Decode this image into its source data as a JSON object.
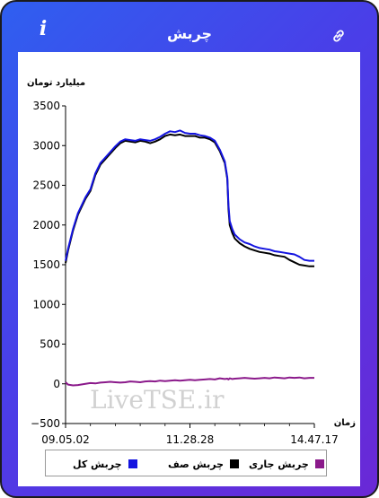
{
  "header": {
    "title": "چربش",
    "info_icon_char": "i",
    "link_icon": "link-icon"
  },
  "chart_data": {
    "type": "line",
    "ylabel": "میلیارد تومان",
    "xlabel": "زمان",
    "ylim": [
      -500,
      3500
    ],
    "yticks": [
      -500,
      0,
      500,
      1000,
      1500,
      2000,
      2500,
      3000,
      3500
    ],
    "x_tick_labels": [
      "09.05.02",
      "11.28.28",
      "14.47.17"
    ],
    "grid": false,
    "legend_position": "bottom",
    "watermark": "LiveTSE.ir",
    "x": [
      0,
      0.01,
      0.03,
      0.05,
      0.08,
      0.1,
      0.12,
      0.14,
      0.16,
      0.18,
      0.2,
      0.22,
      0.24,
      0.26,
      0.28,
      0.3,
      0.32,
      0.34,
      0.36,
      0.38,
      0.4,
      0.42,
      0.44,
      0.46,
      0.48,
      0.5,
      0.52,
      0.54,
      0.56,
      0.58,
      0.6,
      0.62,
      0.64,
      0.65,
      0.655,
      0.66,
      0.67,
      0.68,
      0.7,
      0.72,
      0.74,
      0.76,
      0.78,
      0.8,
      0.82,
      0.84,
      0.86,
      0.88,
      0.9,
      0.92,
      0.94,
      0.96,
      0.98,
      1.0
    ],
    "series": [
      {
        "name": "چربش کل",
        "color": "#1414e0",
        "values": [
          1550,
          1700,
          1950,
          2150,
          2350,
          2450,
          2650,
          2780,
          2850,
          2920,
          2990,
          3050,
          3080,
          3070,
          3060,
          3080,
          3070,
          3060,
          3080,
          3110,
          3150,
          3180,
          3170,
          3190,
          3160,
          3150,
          3150,
          3130,
          3120,
          3100,
          3060,
          2950,
          2800,
          2600,
          2250,
          2050,
          1950,
          1880,
          1820,
          1780,
          1760,
          1730,
          1710,
          1700,
          1690,
          1670,
          1660,
          1650,
          1640,
          1630,
          1600,
          1560,
          1550,
          1550
        ]
      },
      {
        "name": "چربش صف",
        "color": "#000000",
        "values": [
          1520,
          1680,
          1930,
          2130,
          2330,
          2430,
          2630,
          2760,
          2830,
          2900,
          2970,
          3030,
          3060,
          3050,
          3040,
          3060,
          3050,
          3030,
          3050,
          3080,
          3120,
          3140,
          3130,
          3140,
          3120,
          3120,
          3120,
          3100,
          3100,
          3080,
          3040,
          2930,
          2780,
          2580,
          2200,
          2000,
          1900,
          1830,
          1770,
          1730,
          1700,
          1680,
          1660,
          1650,
          1640,
          1620,
          1610,
          1600,
          1560,
          1530,
          1500,
          1490,
          1480,
          1480
        ]
      },
      {
        "name": "چربش جاری",
        "color": "#8b1a8b",
        "values": [
          20,
          -10,
          -20,
          -15,
          0,
          10,
          5,
          15,
          20,
          25,
          20,
          15,
          20,
          30,
          25,
          20,
          30,
          35,
          30,
          40,
          35,
          40,
          45,
          40,
          45,
          50,
          45,
          50,
          55,
          60,
          55,
          70,
          60,
          65,
          55,
          70,
          60,
          65,
          70,
          75,
          70,
          65,
          70,
          75,
          70,
          80,
          75,
          70,
          80,
          75,
          80,
          70,
          75,
          75
        ]
      }
    ]
  }
}
